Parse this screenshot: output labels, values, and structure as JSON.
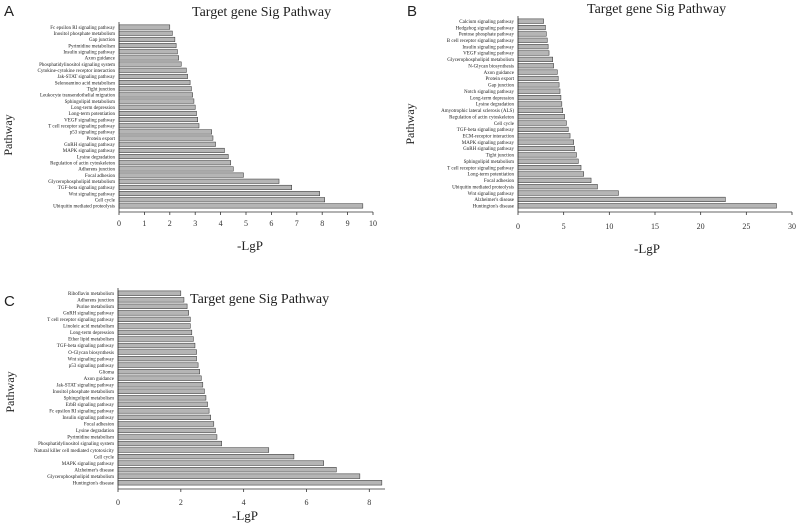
{
  "chart_data": [
    {
      "type": "bar",
      "orientation": "horizontal",
      "panel": "A",
      "title": "Target gene Sig Pathway",
      "xlabel": "-LgP",
      "ylabel": "Pathway",
      "xlim": [
        0,
        10
      ],
      "xticks": [
        "0",
        "1",
        "2",
        "3",
        "4",
        "5",
        "6",
        "7",
        "8",
        "9",
        "10"
      ],
      "categories": [
        "Fc epsilon RI signaling pathway",
        "Inositol phosphate metabolism",
        "Gap junction",
        "Pyrimidine metabolism",
        "Insulin signaling pathway",
        "Axon guidance",
        "Phosphatidylinositol signaling system",
        "Cytokine-cytokine receptor interaction",
        "Jak-STAT signaling pathway",
        "Selenoamino acid metabolism",
        "Tight junction",
        "Leukocyte transendothelial migration",
        "Sphingolipid metabolism",
        "Long-term depression",
        "Long-term potentiation",
        "VEGF signaling pathway",
        "T cell receptor signaling pathway",
        "p53 signaling pathway",
        "Protein export",
        "GnRH signaling pathway",
        "MAPK signaling pathway",
        "Lysine degradation",
        "Regulation of actin cytoskeleton",
        "Adherens junction",
        "Focal adhesion",
        "Glycerophospholipid metabolism",
        "TGF-beta signaling pathway",
        "Wnt signaling pathway",
        "Cell cycle",
        "Ubiquitin mediated proteolysis"
      ],
      "values": [
        2.0,
        2.1,
        2.2,
        2.25,
        2.3,
        2.35,
        2.45,
        2.65,
        2.7,
        2.8,
        2.85,
        2.9,
        2.95,
        3.0,
        3.05,
        3.1,
        3.15,
        3.65,
        3.7,
        3.8,
        4.15,
        4.3,
        4.4,
        4.5,
        4.9,
        6.3,
        6.8,
        7.9,
        8.1,
        9.6
      ]
    },
    {
      "type": "bar",
      "orientation": "horizontal",
      "panel": "B",
      "title": "Target gene Sig Pathway",
      "xlabel": "-LgP",
      "ylabel": "Pathway",
      "xlim": [
        0,
        30
      ],
      "xticks": [
        "0",
        "5",
        "10",
        "15",
        "20",
        "25",
        "30"
      ],
      "categories": [
        "Calcium signaling pathway",
        "Hedgehog signaling pathway",
        "Pentose phosphate pathway",
        "B cell receptor signaling pathway",
        "Insulin signaling pathway",
        "VEGF signaling pathway",
        "Glycerophospholipid metabolism",
        "N-Glycan biosynthesis",
        "Axon guidance",
        "Protein export",
        "Gap junction",
        "Notch signaling pathway",
        "Long-term depression",
        "Lysine degradation",
        "Amyotrophic lateral sclerosis (ALS)",
        "Regulation of actin cytoskeleton",
        "Cell cycle",
        "TGF-beta signaling pathway",
        "ECM-receptor interaction",
        "MAPK signaling pathway",
        "GnRH signaling pathway",
        "Tight junction",
        "Sphingolipid metabolism",
        "T cell receptor signaling pathway",
        "Long-term potentiation",
        "Focal adhesion",
        "Ubiquitin mediated proteolysis",
        "Wnt signaling pathway",
        "Alzheimer's disease",
        "Huntington's disease"
      ],
      "values": [
        2.8,
        3.0,
        3.1,
        3.2,
        3.3,
        3.4,
        3.8,
        3.9,
        4.3,
        4.4,
        4.5,
        4.6,
        4.7,
        4.8,
        4.9,
        5.1,
        5.3,
        5.5,
        5.7,
        6.1,
        6.2,
        6.4,
        6.6,
        6.9,
        7.2,
        8.0,
        8.7,
        11.0,
        22.7,
        28.3
      ]
    },
    {
      "type": "bar",
      "orientation": "horizontal",
      "panel": "C",
      "title": "Target gene Sig Pathway",
      "xlabel": "-LgP",
      "ylabel": "Pathway",
      "xlim": [
        0,
        8.5
      ],
      "xticks": [
        "0",
        "2",
        "4",
        "6",
        "8"
      ],
      "categories": [
        "Riboflavin metabolism",
        "Adherens junction",
        "Purine metabolism",
        "GnRH signaling pathway",
        "T cell receptor signaling pathway",
        "Linoleic acid metabolism",
        "Long-term depression",
        "Ether lipid metabolism",
        "TGF-beta signaling pathway",
        "O-Glycan biosynthesis",
        "Wnt signaling pathway",
        "p53 signaling pathway",
        "Glioma",
        "Axon guidance",
        "Jak-STAT signaling pathway",
        "Inositol phosphate metabolism",
        "Sphingolipid metabolism",
        "ErbB signaling pathway",
        "Fc epsilon RI signaling pathway",
        "Insulin signaling pathway",
        "Focal adhesion",
        "Lysine degradation",
        "Pyrimidine metabolism",
        "Phosphatidylinositol signaling system",
        "Natural killer cell mediated cytotoxicity",
        "Cell cycle",
        "MAPK signaling pathway",
        "Alzheimer's disease",
        "Glycerophospholipid metabolism",
        "Huntington's disease"
      ],
      "values": [
        2.0,
        2.1,
        2.2,
        2.25,
        2.3,
        2.3,
        2.35,
        2.4,
        2.45,
        2.5,
        2.5,
        2.55,
        2.6,
        2.65,
        2.7,
        2.75,
        2.8,
        2.85,
        2.9,
        2.95,
        3.05,
        3.1,
        3.15,
        3.3,
        4.8,
        5.6,
        6.55,
        6.95,
        7.7,
        8.4
      ]
    }
  ]
}
